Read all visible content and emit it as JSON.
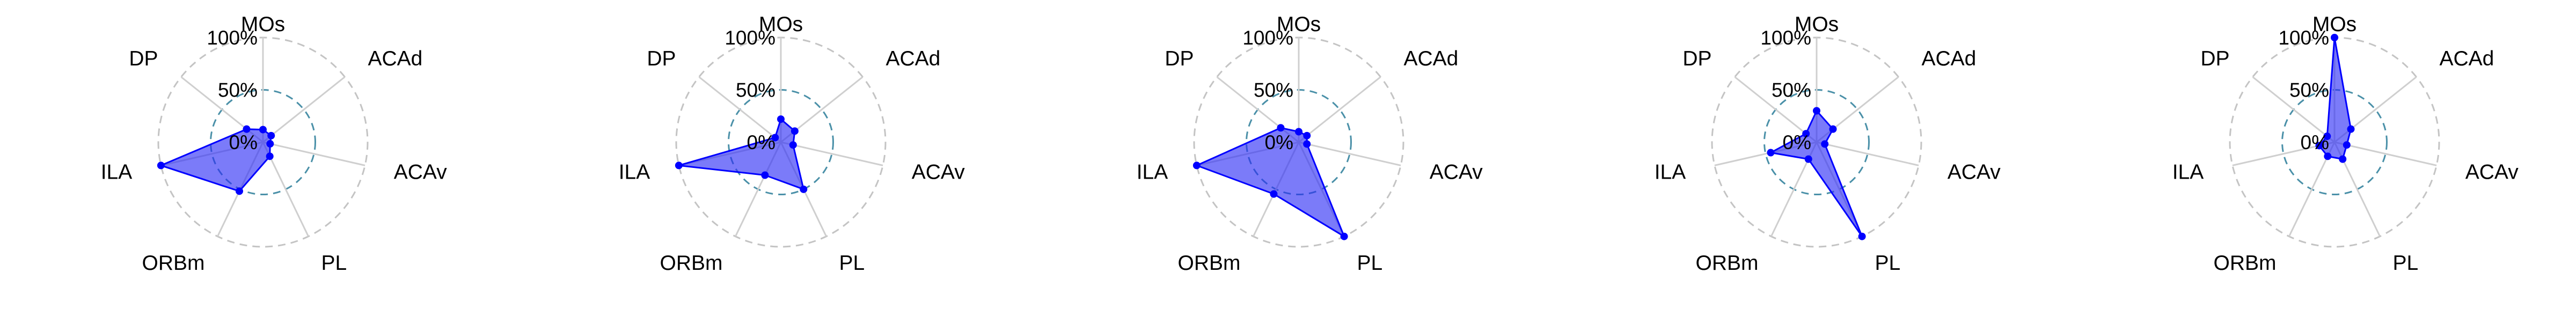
{
  "chart_data": [
    {
      "type": "radar",
      "axes": [
        "MOs",
        "ACAd",
        "ACAv",
        "PL",
        "ORBm",
        "ILA",
        "DP"
      ],
      "tick_labels": [
        "0%",
        "50%",
        "100%"
      ],
      "rmax": 100,
      "values": [
        12,
        10,
        7,
        15,
        52,
        100,
        20
      ],
      "grid": true
    },
    {
      "type": "radar",
      "axes": [
        "MOs",
        "ACAd",
        "ACAv",
        "PL",
        "ORBm",
        "ILA",
        "DP"
      ],
      "tick_labels": [
        "0%",
        "50%",
        "100%"
      ],
      "rmax": 100,
      "values": [
        22,
        17,
        12,
        50,
        35,
        100,
        7
      ],
      "grid": true
    },
    {
      "type": "radar",
      "axes": [
        "MOs",
        "ACAd",
        "ACAv",
        "PL",
        "ORBm",
        "ILA",
        "DP"
      ],
      "tick_labels": [
        "0%",
        "50%",
        "100%"
      ],
      "rmax": 100,
      "values": [
        10,
        10,
        8,
        100,
        55,
        100,
        22
      ],
      "grid": true
    },
    {
      "type": "radar",
      "axes": [
        "MOs",
        "ACAd",
        "ACAv",
        "PL",
        "ORBm",
        "ILA",
        "DP"
      ],
      "tick_labels": [
        "0%",
        "50%",
        "100%"
      ],
      "rmax": 100,
      "values": [
        30,
        20,
        8,
        100,
        18,
        45,
        13
      ],
      "grid": true
    },
    {
      "type": "radar",
      "axes": [
        "MOs",
        "ACAd",
        "ACAv",
        "PL",
        "ORBm",
        "ILA",
        "DP"
      ],
      "tick_labels": [
        "0%",
        "50%",
        "100%"
      ],
      "rmax": 100,
      "values": [
        100,
        20,
        12,
        18,
        15,
        15,
        9
      ],
      "grid": true
    }
  ],
  "style": {
    "fill_color": "#2a2af5",
    "fill_opacity": 0.62,
    "line_color": "#0000ff",
    "point_color": "#0000ff",
    "outer_circle_color": "#c4c4c4",
    "mid_circle_color": "#4a90a8",
    "spoke_color": "#cfcfcf"
  }
}
